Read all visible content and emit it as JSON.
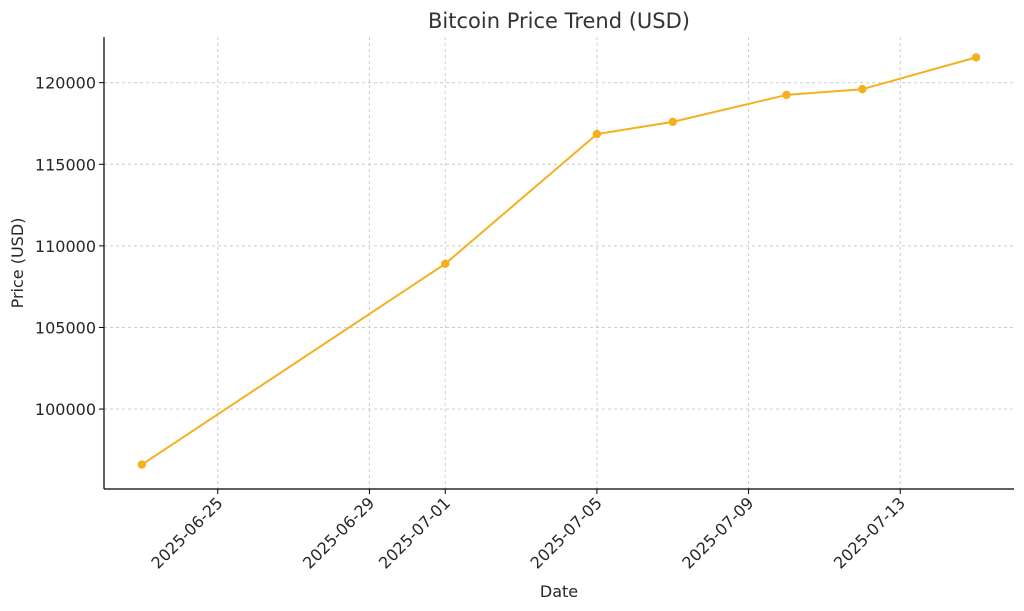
{
  "chart_data": {
    "type": "line",
    "title": "Bitcoin Price Trend (USD)",
    "xlabel": "Date",
    "ylabel": "Price (USD)",
    "x_tick_labels": [
      "2025-06-25",
      "2025-06-29",
      "2025-07-01",
      "2025-07-05",
      "2025-07-09",
      "2025-07-13"
    ],
    "y_tick_labels": [
      "100000",
      "105000",
      "110000",
      "115000",
      "120000"
    ],
    "xlim": [
      "2025-06-22",
      "2025-07-16"
    ],
    "ylim": [
      95100,
      122800
    ],
    "grid": true,
    "color": "#f5b01d",
    "series": [
      {
        "x": [
          "2025-06-23",
          "2025-07-01",
          "2025-07-05",
          "2025-07-07",
          "2025-07-10",
          "2025-07-12",
          "2025-07-15"
        ],
        "values": [
          96600,
          108900,
          116850,
          117600,
          119250,
          119600,
          121550
        ]
      }
    ]
  }
}
